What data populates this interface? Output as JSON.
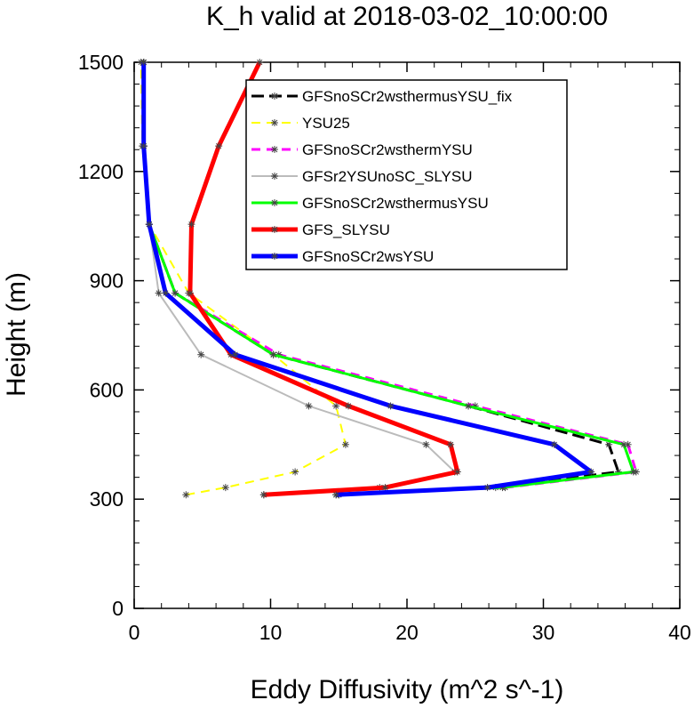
{
  "chart_data": {
    "type": "line",
    "title": "K_h valid at 2018-03-02_10:00:00",
    "xlabel": "Eddy Diffusivity (m^2 s^-1)",
    "ylabel": "Height (m)",
    "xlim": [
      0,
      40
    ],
    "ylim": [
      0,
      1500
    ],
    "x_ticks": [
      "0",
      "10",
      "20",
      "30",
      "40"
    ],
    "y_ticks": [
      "0",
      "300",
      "600",
      "900",
      "1200",
      "1500"
    ],
    "grid": false,
    "legend_position": "top-right",
    "series": [
      {
        "name": "GFSnoSCr2wsthermusYSU_fix",
        "color": "#000000",
        "dash": "long-dash",
        "width": 3,
        "points": [
          [
            14.8,
            312
          ],
          [
            26.5,
            332
          ],
          [
            35.5,
            375
          ],
          [
            34.8,
            450
          ],
          [
            24.5,
            556
          ],
          [
            10.2,
            697
          ],
          [
            3,
            866
          ],
          [
            1.1,
            1055
          ],
          [
            0.7,
            1270
          ],
          [
            0.7,
            1500
          ]
        ]
      },
      {
        "name": "YSU25",
        "color": "#ffff00",
        "dash": "dash",
        "width": 2,
        "points": [
          [
            3.8,
            312
          ],
          [
            6.7,
            332
          ],
          [
            11.8,
            375
          ],
          [
            15.5,
            450
          ],
          [
            14.8,
            556
          ],
          [
            10.2,
            697
          ],
          [
            4,
            866
          ],
          [
            1.1,
            1055
          ],
          [
            0.6,
            1270
          ],
          [
            0.5,
            1500
          ]
        ]
      },
      {
        "name": "GFSnoSCr2wsthermYSU",
        "color": "#ff00ff",
        "dash": "dash",
        "width": 3,
        "points": [
          [
            15,
            312
          ],
          [
            27.2,
            332
          ],
          [
            36.8,
            375
          ],
          [
            36.2,
            450
          ],
          [
            25,
            556
          ],
          [
            10.6,
            697
          ],
          [
            3,
            866
          ],
          [
            1.1,
            1055
          ],
          [
            0.7,
            1270
          ],
          [
            0.7,
            1500
          ]
        ]
      },
      {
        "name": "GFSr2YSUnoSC_SLYSU",
        "color": "#bbbbbb",
        "dash": "solid",
        "width": 2,
        "points": [
          [
            9.5,
            312
          ],
          [
            18,
            332
          ],
          [
            23.5,
            375
          ],
          [
            21.4,
            450
          ],
          [
            12.8,
            556
          ],
          [
            4.9,
            697
          ],
          [
            1.8,
            866
          ],
          [
            1.1,
            1055
          ],
          [
            0.7,
            1270
          ],
          [
            0.7,
            1500
          ]
        ]
      },
      {
        "name": "GFSnoSCr2wsthermusYSU",
        "color": "#00ff00",
        "dash": "solid",
        "width": 3,
        "points": [
          [
            15,
            312
          ],
          [
            27,
            332
          ],
          [
            36.6,
            375
          ],
          [
            35.9,
            450
          ],
          [
            24.5,
            556
          ],
          [
            10.2,
            697
          ],
          [
            3,
            866
          ],
          [
            1.1,
            1055
          ],
          [
            0.7,
            1270
          ],
          [
            0.7,
            1500
          ]
        ]
      },
      {
        "name": "GFS_SLYSU",
        "color": "#ff0000",
        "dash": "solid",
        "width": 5,
        "points": [
          [
            9.5,
            312
          ],
          [
            18.4,
            332
          ],
          [
            23.7,
            375
          ],
          [
            23.2,
            450
          ],
          [
            15.7,
            556
          ],
          [
            7.1,
            697
          ],
          [
            4.1,
            866
          ],
          [
            4.2,
            1055
          ],
          [
            6.2,
            1270
          ],
          [
            9.2,
            1500
          ]
        ]
      },
      {
        "name": "GFSnoSCr2wsYSU",
        "color": "#0000ff",
        "dash": "solid",
        "width": 5,
        "points": [
          [
            14.8,
            312
          ],
          [
            25.9,
            332
          ],
          [
            33.5,
            375
          ],
          [
            30.8,
            450
          ],
          [
            18.8,
            556
          ],
          [
            7.4,
            697
          ],
          [
            2.3,
            866
          ],
          [
            1.1,
            1055
          ],
          [
            0.7,
            1270
          ],
          [
            0.7,
            1500
          ]
        ]
      }
    ]
  }
}
